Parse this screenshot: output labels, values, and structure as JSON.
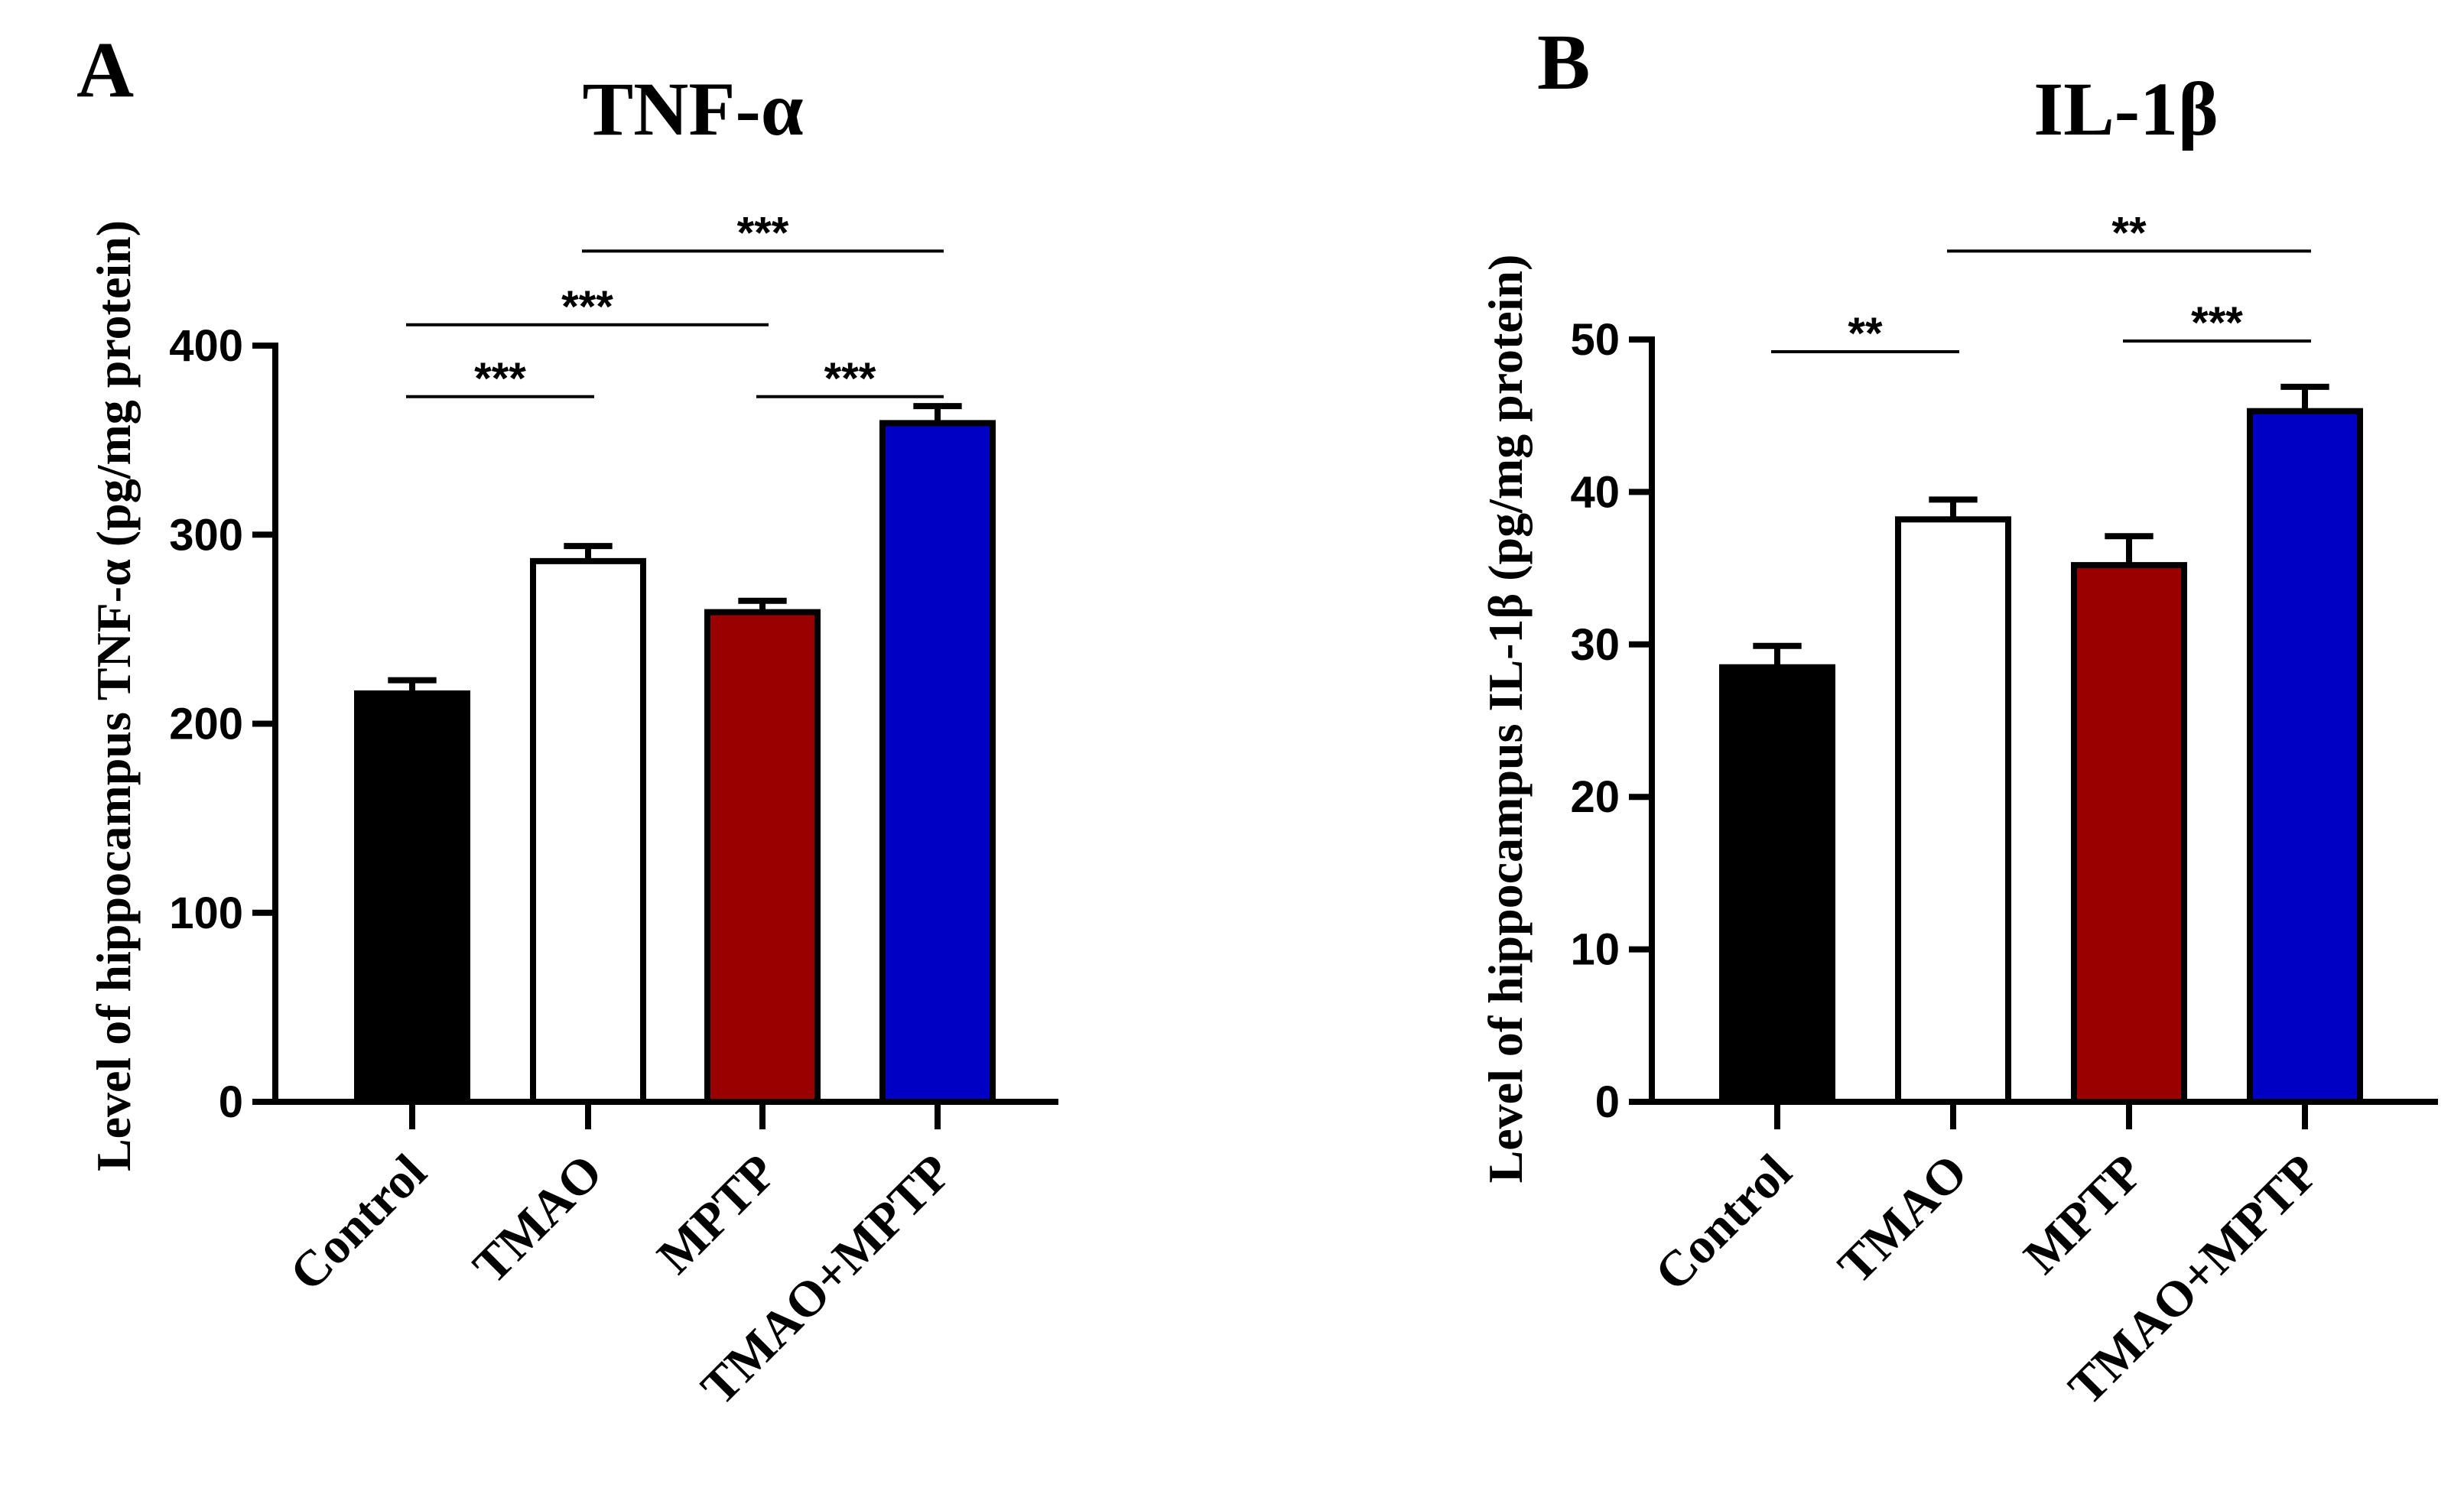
{
  "chart_data": [
    {
      "panel": "A",
      "type": "bar",
      "title": "TNF-α",
      "ylabel": "Level of hippocampus TNF-α (pg/mg protein)",
      "xlabel": "",
      "ylim": [
        0,
        400
      ],
      "yticks": [
        0,
        100,
        200,
        300,
        400
      ],
      "categories": [
        "Control",
        "TMAO",
        "MPTP",
        "TMAO+MPTP"
      ],
      "values": [
        216,
        286,
        259,
        359
      ],
      "errors": [
        7,
        8,
        6,
        9
      ],
      "colors": [
        "#000000",
        "#ffffff",
        "#9a0000",
        "#0000c4"
      ],
      "significance": [
        {
          "from": 0,
          "to": 1,
          "label": "***",
          "level": 373
        },
        {
          "from": 0,
          "to": 2,
          "label": "***",
          "level": 411
        },
        {
          "from": 1,
          "to": 3,
          "label": "***",
          "level": 450
        },
        {
          "from": 2,
          "to": 3,
          "label": "***",
          "level": 373
        }
      ]
    },
    {
      "panel": "B",
      "type": "bar",
      "title": "IL-1β",
      "ylabel": "Level of hippocampus IL-1β (pg/mg protein)",
      "xlabel": "",
      "ylim": [
        0,
        50
      ],
      "yticks": [
        0,
        10,
        20,
        30,
        40,
        50
      ],
      "categories": [
        "Control",
        "TMAO",
        "MPTP",
        "TMAO+MPTP"
      ],
      "values": [
        28.5,
        38.2,
        35.2,
        45.3
      ],
      "errors": [
        1.4,
        1.3,
        1.9,
        1.6
      ],
      "colors": [
        "#000000",
        "#ffffff",
        "#9a0000",
        "#0000c4"
      ],
      "significance": [
        {
          "from": 0,
          "to": 1,
          "label": "**",
          "level": 49.2
        },
        {
          "from": 1,
          "to": 3,
          "label": "**",
          "level": 55.8
        },
        {
          "from": 2,
          "to": 3,
          "label": "***",
          "level": 49.9
        }
      ]
    }
  ]
}
